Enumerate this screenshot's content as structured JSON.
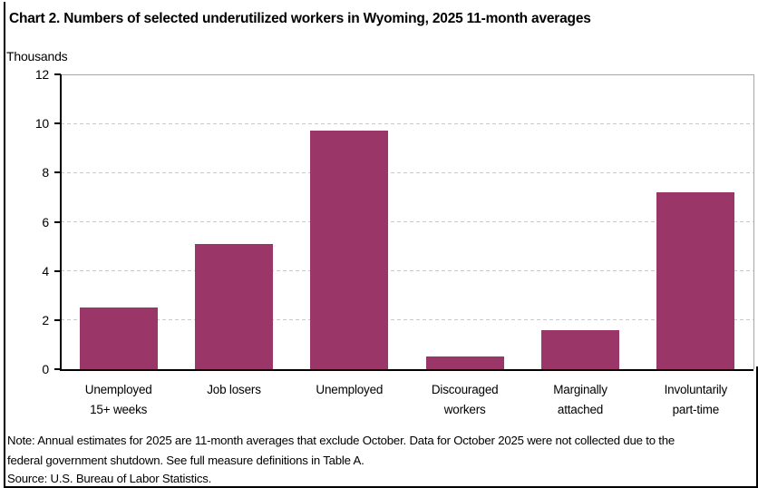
{
  "chart_data": {
    "type": "bar",
    "title": "Chart 2. Numbers of selected underutilized workers in Wyoming, 2025 11-month averages",
    "unit_label": "Thousands",
    "categories": [
      "Unemployed 15+ weeks",
      "Job losers",
      "Unemployed",
      "Discouraged workers",
      "Marginally attached",
      "Involuntarily part-time"
    ],
    "category_lines": [
      [
        "Unemployed",
        "15+ weeks"
      ],
      [
        "Job losers"
      ],
      [
        "Unemployed"
      ],
      [
        "Discouraged",
        "workers"
      ],
      [
        "Marginally",
        "attached"
      ],
      [
        "Involuntarily",
        "part-time"
      ]
    ],
    "values": [
      2.5,
      5.1,
      9.7,
      0.5,
      1.6,
      7.2
    ],
    "xlabel": "",
    "ylabel": "Thousands",
    "ylim": [
      0,
      12
    ],
    "yticks": [
      0,
      2,
      4,
      6,
      8,
      10,
      12
    ],
    "grid": "horizontal-dashed",
    "legend_position": "none",
    "bar_color": "#9B3669",
    "gridline_color": "#C9C9C9",
    "plot_border_color": "#A6A6A6",
    "axis_color": "#000000"
  },
  "footer": {
    "note": "Note: Annual estimates for 2025 are 11-month averages that exclude October. Data for October 2025 were not collected due to the federal government shutdown. See full measure definitions in Table A.",
    "source": "Source: U.S. Bureau of Labor Statistics."
  }
}
